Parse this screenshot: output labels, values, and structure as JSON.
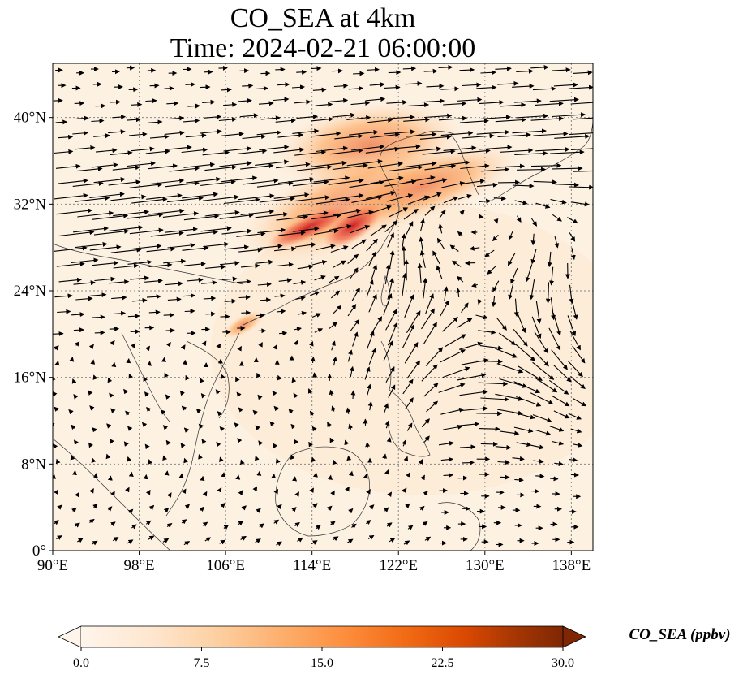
{
  "map": {
    "title_line1": "CO_SEA at 4km",
    "title_line2": "Time: 2024-02-21 06:00:00",
    "lon_range": [
      90,
      140
    ],
    "lat_range": [
      0,
      45
    ],
    "lon_ticks": [
      {
        "value": 90,
        "label": "90°E"
      },
      {
        "value": 98,
        "label": "98°E"
      },
      {
        "value": 106,
        "label": "106°E"
      },
      {
        "value": 114,
        "label": "114°E"
      },
      {
        "value": 122,
        "label": "122°E"
      },
      {
        "value": 130,
        "label": "130°E"
      },
      {
        "value": 138,
        "label": "138°E"
      }
    ],
    "lat_ticks": [
      {
        "value": 0,
        "label": "0°"
      },
      {
        "value": 8,
        "label": "8°N"
      },
      {
        "value": 16,
        "label": "16°N"
      },
      {
        "value": 24,
        "label": "24°N"
      },
      {
        "value": 32,
        "label": "32°N"
      },
      {
        "value": 40,
        "label": "40°N"
      }
    ],
    "colormap": [
      "#fff5eb",
      "#fee6ce",
      "#fdd0a2",
      "#fdae6b",
      "#fd8d3c",
      "#f16913",
      "#d94801",
      "#a63603",
      "#7f2704"
    ],
    "plume_color": "#f4a582",
    "plume_core_color": "#d6604d",
    "coast_color": "#333333",
    "grid_color": "#888888",
    "arrow_color": "#000000"
  },
  "colorbar": {
    "label": "CO_SEA (ppbv)",
    "min": 0,
    "max": 30,
    "ticks": [
      {
        "value": 0,
        "label": "0.0"
      },
      {
        "value": 7.5,
        "label": "7.5"
      },
      {
        "value": 15,
        "label": "15.0"
      },
      {
        "value": 22.5,
        "label": "22.5"
      },
      {
        "value": 30,
        "label": "30.0"
      }
    ],
    "extend": "both"
  }
}
